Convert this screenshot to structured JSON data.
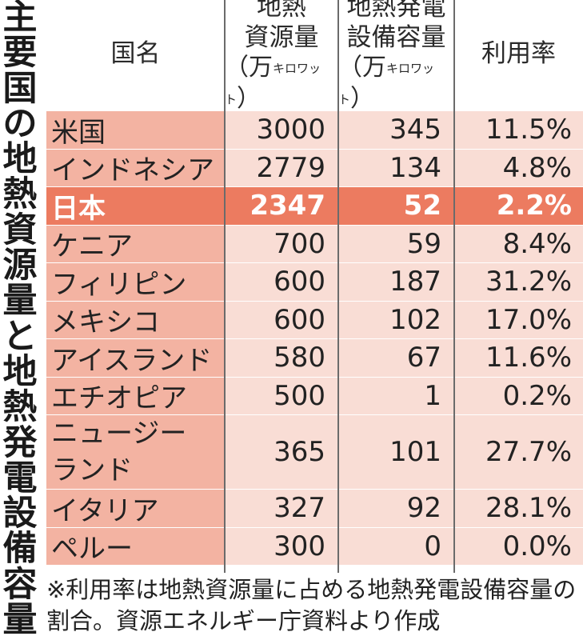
{
  "title": "主要国の地熱資源量と地熱発電設備容量",
  "headers": {
    "country": "国名",
    "resource_line1": "地熱",
    "resource_line2": "資源量",
    "capacity_line1": "地熱発電",
    "capacity_line2": "設備容量",
    "unit_prefix": "（万",
    "unit_small": "キロワット",
    "unit_suffix": "）",
    "rate": "利用率"
  },
  "colors": {
    "row_light": "#f9ddd5",
    "row_name_light": "#f3b3a2",
    "row_highlight": "#ec7b60",
    "border": "#6b6b6b"
  },
  "chart_data": {
    "type": "table",
    "columns": [
      "国名",
      "地熱資源量",
      "地熱発電設備容量",
      "利用率"
    ],
    "rows": [
      {
        "country": "米国",
        "resource": "3000",
        "capacity": "345",
        "rate": "11.5%",
        "highlight": false
      },
      {
        "country": "インドネシア",
        "resource": "2779",
        "capacity": "134",
        "rate": "4.8%",
        "highlight": false
      },
      {
        "country": "日本",
        "resource": "2347",
        "capacity": "52",
        "rate": "2.2%",
        "highlight": true
      },
      {
        "country": "ケニア",
        "resource": "700",
        "capacity": "59",
        "rate": "8.4%",
        "highlight": false
      },
      {
        "country": "フィリピン",
        "resource": "600",
        "capacity": "187",
        "rate": "31.2%",
        "highlight": false
      },
      {
        "country": "メキシコ",
        "resource": "600",
        "capacity": "102",
        "rate": "17.0%",
        "highlight": false
      },
      {
        "country": "アイスランド",
        "resource": "580",
        "capacity": "67",
        "rate": "11.6%",
        "highlight": false
      },
      {
        "country": "エチオピア",
        "resource": "500",
        "capacity": "1",
        "rate": "0.2%",
        "highlight": false
      },
      {
        "country": "ニュージーランド",
        "country_line1": "ニュージー",
        "country_line2": "ランド",
        "resource": "365",
        "capacity": "101",
        "rate": "27.7%",
        "highlight": false
      },
      {
        "country": "イタリア",
        "resource": "327",
        "capacity": "92",
        "rate": "28.1%",
        "highlight": false
      },
      {
        "country": "ペルー",
        "resource": "300",
        "capacity": "0",
        "rate": "0.0%",
        "highlight": false
      }
    ]
  },
  "note": "※利用率は地熱資源量に占める地熱発電設備容量の割合。資源エネルギー庁資料より作成"
}
